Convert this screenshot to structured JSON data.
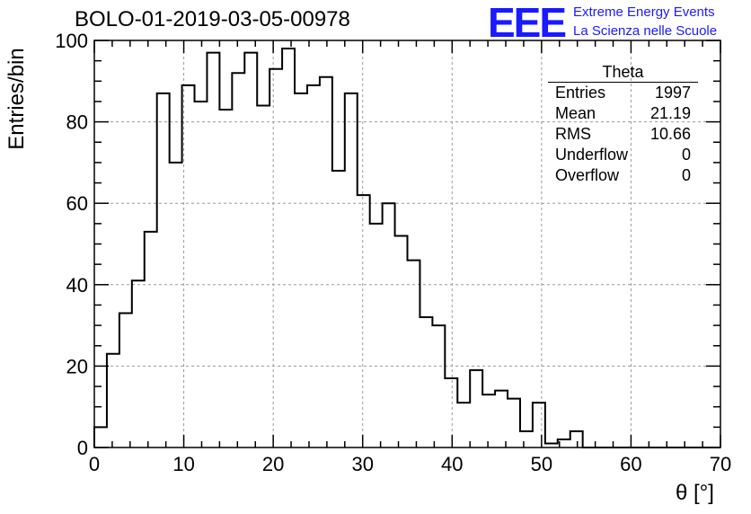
{
  "title": "BOLO-01-2019-03-05-00978",
  "logo": {
    "mark": "EEE",
    "line1": "Extreme Energy Events",
    "line2": "La Scienza nelle Scuole",
    "color": "#1a1aff"
  },
  "stats": {
    "title": "Theta",
    "rows": [
      {
        "label": "Entries",
        "value": "1997"
      },
      {
        "label": "Mean",
        "value": "21.19"
      },
      {
        "label": "RMS",
        "value": "10.66"
      },
      {
        "label": "Underflow",
        "value": "0"
      },
      {
        "label": "Overflow",
        "value": "0"
      }
    ]
  },
  "chart_data": {
    "type": "histogram",
    "title": "BOLO-01-2019-03-05-00978",
    "xlabel": "θ [°]",
    "ylabel": "Entries/bin",
    "xlim": [
      0,
      70
    ],
    "ylim": [
      0,
      100
    ],
    "bin_width": 1.4,
    "x_ticks": [
      0,
      10,
      20,
      30,
      40,
      50,
      60,
      70
    ],
    "y_ticks": [
      0,
      20,
      40,
      60,
      80,
      100
    ],
    "grid": true,
    "legend": "stats box top-right",
    "values": [
      5,
      23,
      33,
      41,
      53,
      87,
      70,
      89,
      85,
      97,
      83,
      92,
      97,
      84,
      93,
      98,
      87,
      89,
      91,
      68,
      87,
      62,
      55,
      60,
      52,
      46,
      32,
      30,
      17,
      11,
      19,
      13,
      14,
      12,
      4,
      11,
      1,
      2,
      4,
      0,
      0,
      0,
      0,
      0,
      0,
      0,
      0,
      0,
      0,
      0
    ]
  }
}
